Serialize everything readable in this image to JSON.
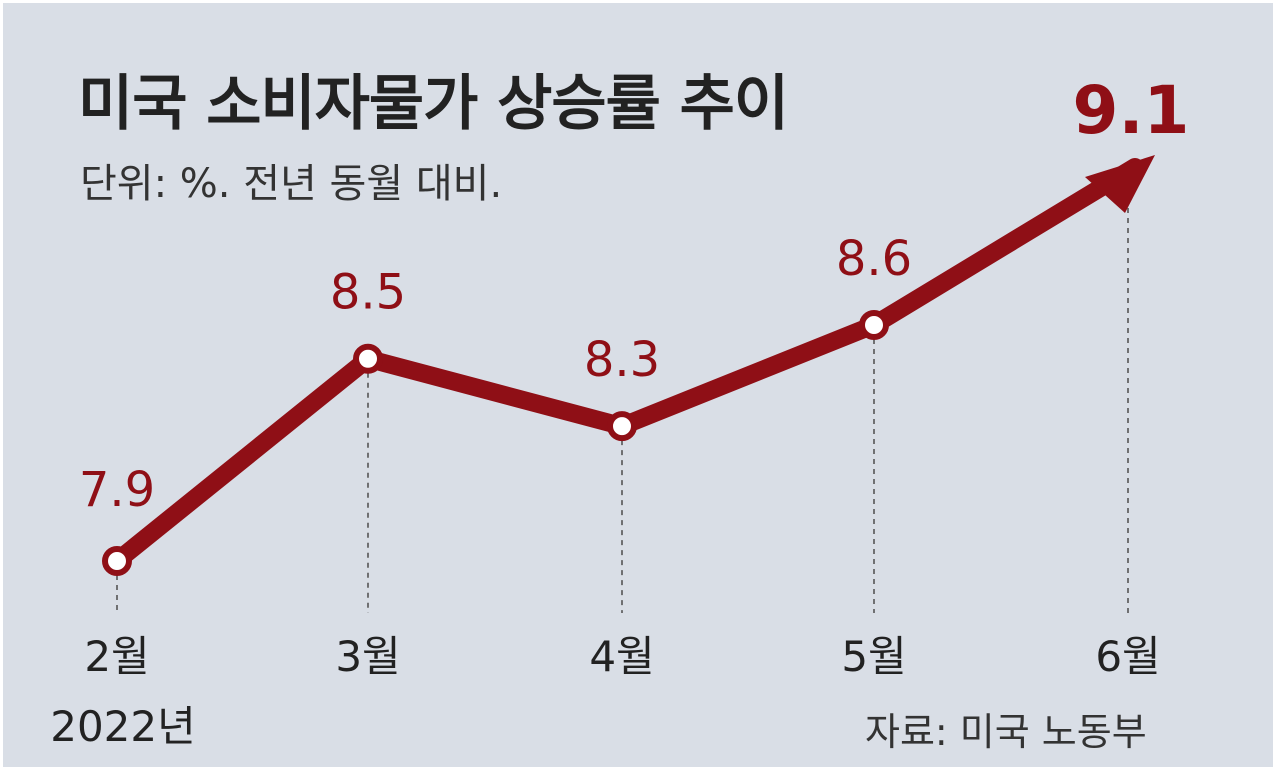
{
  "title": "미국 소비자물가 상승률 추이",
  "subtitle": "단위: %. 전년 동월 대비.",
  "source": "자료: 미국 노동부",
  "colors": {
    "background": "#d9dee6",
    "line": "#8f0f16",
    "label": "#8f0f16",
    "text": "#222222",
    "guide": "#555555"
  },
  "chart_data": {
    "type": "line",
    "categories": [
      "2월",
      "3월",
      "4월",
      "5월",
      "6월"
    ],
    "year_label": "2022년",
    "values": [
      7.9,
      8.5,
      8.3,
      8.6,
      9.1
    ],
    "value_labels": [
      "7.9",
      "8.5",
      "8.3",
      "8.6",
      "9.1"
    ],
    "title": "미국 소비자물가 상승률 추이",
    "ylabel": "",
    "xlabel": "",
    "grid": false,
    "last_point_arrow": true,
    "highlight_last": true
  }
}
